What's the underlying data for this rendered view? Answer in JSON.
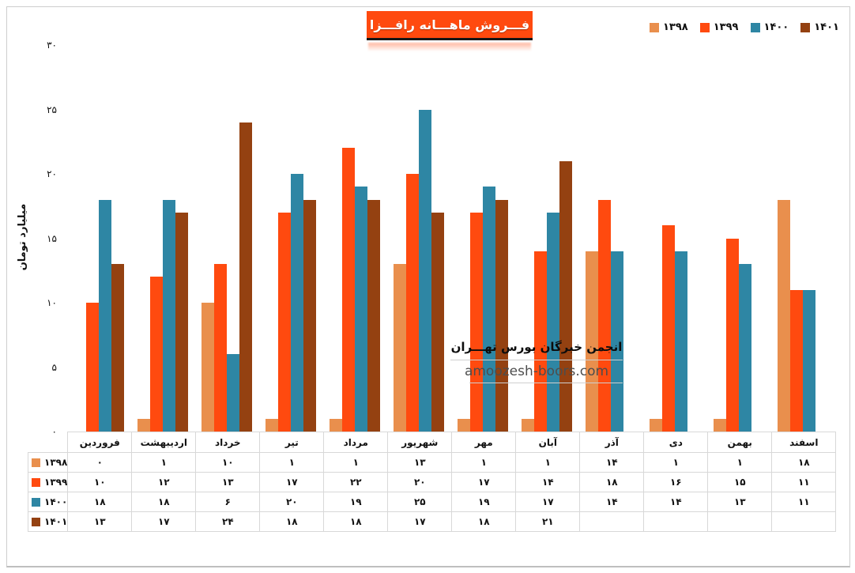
{
  "page": {
    "title": "فـــروش ماهـــانه رافـــزا"
  },
  "colors": {
    "title_background": "#FF4A0F",
    "frame_border": "#CDCDCD",
    "table_border": "#D8D8D8"
  },
  "legend": {
    "position": "top-right",
    "items": [
      {
        "label": "۱۳۹۸",
        "color": "#E98F4D"
      },
      {
        "label": "۱۳۹۹",
        "color": "#FF4A0F"
      },
      {
        "label": "۱۴۰۰",
        "color": "#2E86A4"
      },
      {
        "label": "۱۴۰۱",
        "color": "#944111"
      }
    ]
  },
  "y_axis": {
    "title": "میلیارد تومان",
    "tick_values": [
      30,
      25,
      20,
      15,
      10,
      5,
      0
    ],
    "tick_labels": [
      "۳۰",
      "۲۵",
      "۲۰",
      "۱۵",
      "۱۰",
      "۵",
      "۰"
    ]
  },
  "watermark": {
    "line1": "انجمن خبرگان بورس تهـــران",
    "line2": "amoozesh-boors.com"
  },
  "chart_data": {
    "type": "bar",
    "title": "فـــروش ماهـــانه رافـــزا",
    "xlabel": "",
    "ylabel": "میلیارد تومان",
    "ylim": [
      0,
      30
    ],
    "grid": false,
    "legend_position": "top-right",
    "categories": [
      "فروردین",
      "اردیبهشت",
      "خرداد",
      "تیر",
      "مرداد",
      "شهریور",
      "مهر",
      "آبان",
      "آذر",
      "دی",
      "بهمن",
      "اسفند"
    ],
    "series": [
      {
        "name": "۱۳۹۸",
        "color": "#E98F4D",
        "values": [
          0,
          1,
          10,
          1,
          1,
          13,
          1,
          1,
          14,
          1,
          1,
          18
        ],
        "labels": [
          "۰",
          "۱",
          "۱۰",
          "۱",
          "۱",
          "۱۳",
          "۱",
          "۱",
          "۱۴",
          "۱",
          "۱",
          "۱۸"
        ]
      },
      {
        "name": "۱۳۹۹",
        "color": "#FF4A0F",
        "values": [
          10,
          12,
          13,
          17,
          22,
          20,
          17,
          14,
          18,
          16,
          15,
          11
        ],
        "labels": [
          "۱۰",
          "۱۲",
          "۱۳",
          "۱۷",
          "۲۲",
          "۲۰",
          "۱۷",
          "۱۴",
          "۱۸",
          "۱۶",
          "۱۵",
          "۱۱"
        ]
      },
      {
        "name": "۱۴۰۰",
        "color": "#2E86A4",
        "values": [
          18,
          18,
          6,
          20,
          19,
          25,
          19,
          17,
          14,
          14,
          13,
          11
        ],
        "labels": [
          "۱۸",
          "۱۸",
          "۶",
          "۲۰",
          "۱۹",
          "۲۵",
          "۱۹",
          "۱۷",
          "۱۴",
          "۱۴",
          "۱۳",
          "۱۱"
        ]
      },
      {
        "name": "۱۴۰۱",
        "color": "#944111",
        "values": [
          13,
          17,
          24,
          18,
          18,
          17,
          18,
          21,
          null,
          null,
          null,
          null
        ],
        "labels": [
          "۱۳",
          "۱۷",
          "۲۴",
          "۱۸",
          "۱۸",
          "۱۷",
          "۱۸",
          "۲۱",
          "",
          "",
          "",
          ""
        ]
      }
    ]
  }
}
